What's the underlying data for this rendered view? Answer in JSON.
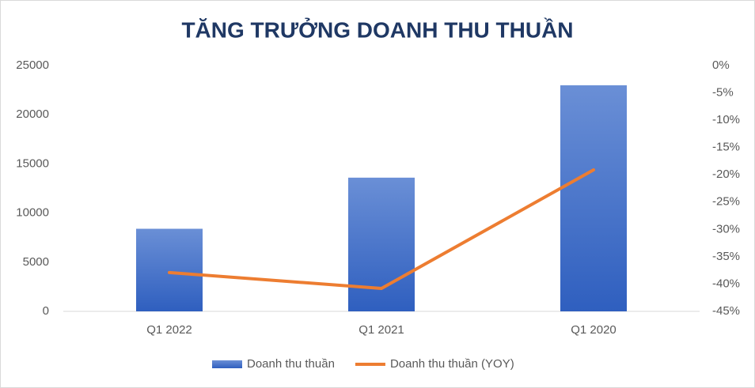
{
  "chart_data": {
    "type": "bar",
    "title": "TĂNG TRƯỞNG DOANH THU THUẦN",
    "categories": [
      "Q1 2022",
      "Q1 2021",
      "Q1 2020"
    ],
    "series": [
      {
        "name": "Doanh thu thuần",
        "type": "bar",
        "color": "#4472c4",
        "values": [
          8400,
          13600,
          23000
        ]
      },
      {
        "name": "Doanh thu thuần (YOY)",
        "type": "line",
        "axis": "y2",
        "color": "#ed7d31",
        "values": [
          -37.9,
          -40.8,
          -19.1
        ]
      }
    ],
    "ylim": [
      0,
      25000
    ],
    "yticks": [
      0,
      5000,
      10000,
      15000,
      20000,
      25000
    ],
    "y2lim": [
      -45,
      0
    ],
    "y2ticks": [
      {
        "value": 0,
        "label": "0%"
      },
      {
        "value": -5,
        "label": "-5%"
      },
      {
        "value": -10,
        "label": "-10%"
      },
      {
        "value": -15,
        "label": "-15%"
      },
      {
        "value": -20,
        "label": "-20%"
      },
      {
        "value": -25,
        "label": "-25%"
      },
      {
        "value": -30,
        "label": "-30%"
      },
      {
        "value": -35,
        "label": "-35%"
      },
      {
        "value": -40,
        "label": "-40%"
      },
      {
        "value": -45,
        "label": "-45%"
      }
    ],
    "legend": "bottom"
  }
}
